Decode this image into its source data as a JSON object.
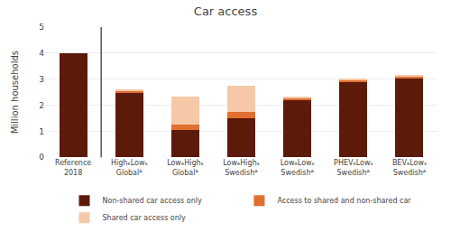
{
  "chart_data": {
    "type": "bar",
    "title": "Car access",
    "ylabel": "Million households",
    "categories": [
      "Reference\n2018",
      "HighₑLowₛ\nGlobalᴬ",
      "LowₑHighₛ\nGlobalᴬ",
      "LowₑHighₛ\nSwedishᴬ",
      "LowₑLowₛ\nSwedishᴬ",
      "PHEVₑLowₛ\nSwedishᴬ",
      "BEVₑLowₛ\nSwedishᴬ"
    ],
    "series": [
      {
        "name": "Non-shared car access only",
        "color": "#5c1a0a",
        "values": [
          4.0,
          2.5,
          1.05,
          1.5,
          2.22,
          2.92,
          3.05
        ]
      },
      {
        "name": "Access to shared and non-shared car",
        "color": "#e07030",
        "values": [
          0.0,
          0.05,
          0.22,
          0.25,
          0.05,
          0.04,
          0.06
        ]
      },
      {
        "name": "Shared car access only",
        "color": "#f5c9a8",
        "values": [
          0.0,
          0.06,
          1.05,
          1.0,
          0.06,
          0.04,
          0.06
        ]
      }
    ],
    "stacked": true,
    "ylim": [
      0,
      5
    ],
    "yticks": [
      0,
      1,
      2,
      3,
      4,
      5
    ],
    "grid": true,
    "legend": "bottom"
  }
}
